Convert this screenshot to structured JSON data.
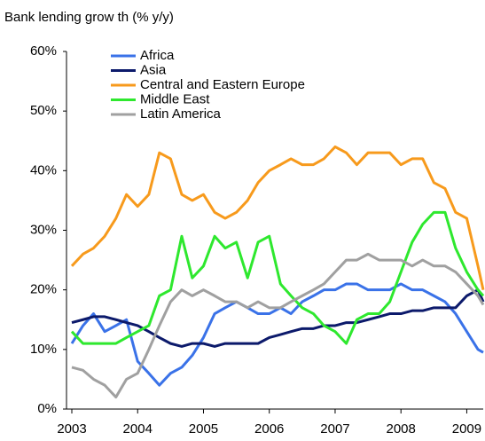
{
  "chart_data": {
    "type": "line",
    "title": "Bank lending grow th (% y/y)",
    "x": [
      2003,
      2003.17,
      2003.33,
      2003.5,
      2003.67,
      2003.83,
      2004,
      2004.17,
      2004.33,
      2004.5,
      2004.67,
      2004.83,
      2005,
      2005.17,
      2005.33,
      2005.5,
      2005.67,
      2005.83,
      2006,
      2006.17,
      2006.33,
      2006.5,
      2006.67,
      2006.83,
      2007,
      2007.17,
      2007.33,
      2007.5,
      2007.67,
      2007.83,
      2008,
      2008.17,
      2008.33,
      2008.5,
      2008.67,
      2008.83,
      2009,
      2009.17,
      2009.25
    ],
    "series": [
      {
        "name": "Africa",
        "color": "#3a72e8",
        "values": [
          11,
          14,
          16,
          13,
          14,
          15,
          8,
          6,
          4,
          6,
          7,
          9,
          12,
          16,
          17,
          18,
          17,
          16,
          16,
          17,
          16,
          18,
          19,
          20,
          20,
          21,
          21,
          20,
          20,
          20,
          21,
          20,
          20,
          19,
          18,
          16,
          13,
          10,
          9.5
        ]
      },
      {
        "name": "Asia",
        "color": "#0c1a6b",
        "values": [
          14.5,
          15,
          15.5,
          15.5,
          15,
          14.5,
          14,
          13,
          12,
          11,
          10.5,
          11,
          11,
          10.5,
          11,
          11,
          11,
          11,
          12,
          12.5,
          13,
          13.5,
          13.5,
          14,
          14,
          14.5,
          14.5,
          15,
          15.5,
          16,
          16,
          16.5,
          16.5,
          17,
          17,
          17,
          19,
          20,
          18
        ]
      },
      {
        "name": "Central and Eastern Europe",
        "color": "#f79a1c",
        "values": [
          24,
          26,
          27,
          29,
          32,
          36,
          34,
          36,
          43,
          42,
          36,
          35,
          36,
          33,
          32,
          33,
          35,
          38,
          40,
          41,
          42,
          41,
          41,
          42,
          44,
          43,
          41,
          43,
          43,
          43,
          41,
          42,
          42,
          38,
          37,
          33,
          32,
          24,
          20
        ]
      },
      {
        "name": "Middle East",
        "color": "#2ee82e",
        "values": [
          13,
          11,
          11,
          11,
          11,
          12,
          13,
          14,
          19,
          20,
          29,
          22,
          24,
          29,
          27,
          28,
          22,
          28,
          29,
          21,
          19,
          17,
          16,
          14,
          13,
          11,
          15,
          16,
          16,
          18,
          23,
          28,
          31,
          33,
          33,
          27,
          23,
          20,
          19
        ]
      },
      {
        "name": "Latin America",
        "color": "#a0a0a0",
        "values": [
          7,
          6.5,
          5,
          4,
          2,
          5,
          6,
          10,
          14,
          18,
          20,
          19,
          20,
          19,
          18,
          18,
          17,
          18,
          17,
          17,
          18,
          19,
          20,
          21,
          23,
          25,
          25,
          26,
          25,
          25,
          25,
          24,
          25,
          24,
          24,
          23,
          21,
          19,
          17.5
        ]
      }
    ],
    "xlim": [
      2003,
      2009.25
    ],
    "xticks": [
      2003,
      2004,
      2005,
      2006,
      2007,
      2008,
      2009
    ],
    "ylim": [
      0,
      60
    ],
    "yticks": [
      {
        "value": 0,
        "label": "0%"
      },
      {
        "value": 10,
        "label": "10%"
      },
      {
        "value": 20,
        "label": "20%"
      },
      {
        "value": 30,
        "label": "30%"
      },
      {
        "value": 40,
        "label": "40%"
      },
      {
        "value": 50,
        "label": "50%"
      },
      {
        "value": 60,
        "label": "60%"
      }
    ],
    "grid": false
  }
}
